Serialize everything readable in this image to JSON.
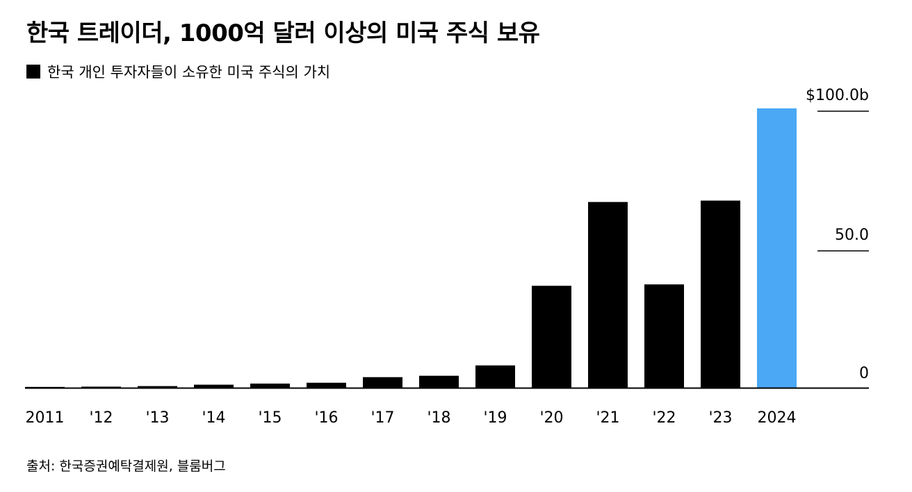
{
  "title": "한국 트레이더, 1000억 달러 이상의 미국 주식 보유",
  "legend": {
    "label": "한국 개인 투자자들이 소유한 미국 주식의 가치",
    "color": "#000000"
  },
  "source": "출처: 한국증권예탁결제원, 블룸버그",
  "colors": {
    "bar": "#000000",
    "highlight": "#4aa8f5",
    "axis": "#000000"
  },
  "chart_data": {
    "type": "bar",
    "categories": [
      "2011",
      "'12",
      "'13",
      "'14",
      "'15",
      "'16",
      "'17",
      "'18",
      "'19",
      "'20",
      "'21",
      "'22",
      "'23",
      "2024"
    ],
    "series": [
      {
        "name": "한국 개인 투자자들이 소유한 미국 주식의 가치",
        "values": [
          0.3,
          0.4,
          0.6,
          1.1,
          1.5,
          1.8,
          3.8,
          4.3,
          8.0,
          36.5,
          66.5,
          37.0,
          67.0,
          100.0
        ]
      }
    ],
    "highlight_index": 13,
    "ylim": [
      0,
      100
    ],
    "yticks": [
      {
        "value": 0,
        "label": "0"
      },
      {
        "value": 50,
        "label": "50.0"
      },
      {
        "value": 100,
        "label": "$100.0b"
      }
    ],
    "y_axis_position": "right",
    "grid": false,
    "legend_position": "top-left"
  }
}
